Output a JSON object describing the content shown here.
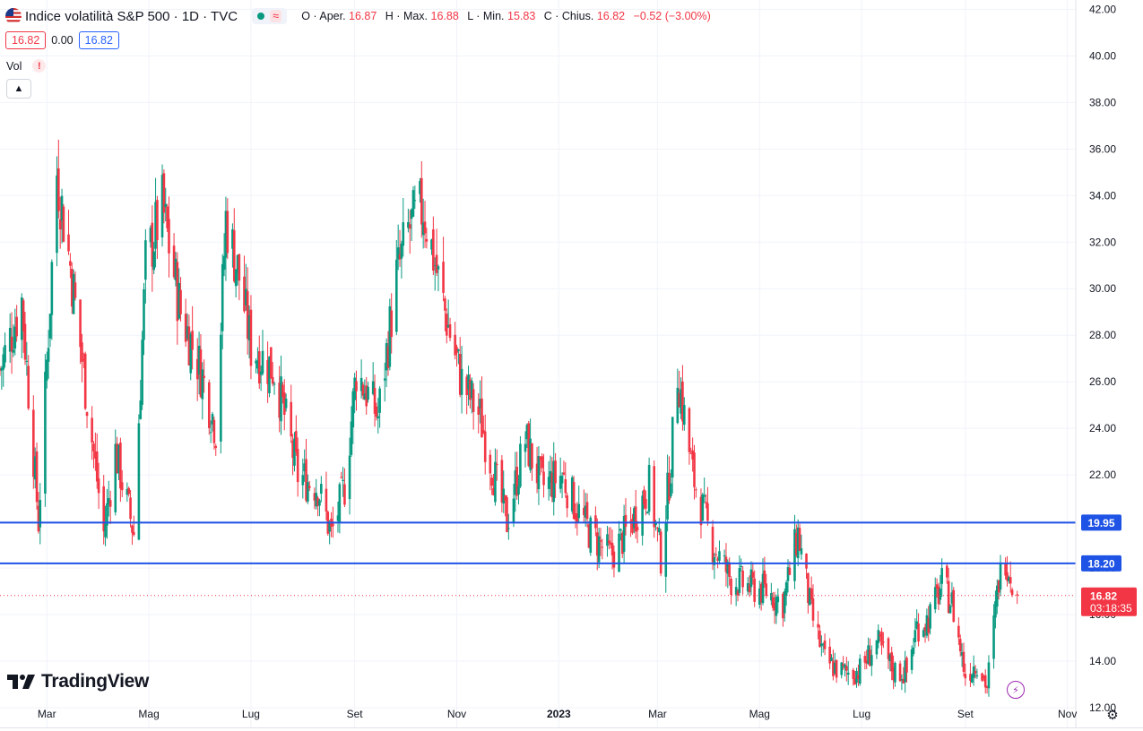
{
  "header": {
    "title": "Indice volatilità S&P 500 · 1D · TVC",
    "ohlc": [
      {
        "label": "O",
        "name": "Aper.",
        "value": "16.87"
      },
      {
        "label": "H",
        "name": "Max.",
        "value": "16.88"
      },
      {
        "label": "L",
        "name": "Min.",
        "value": "15.83"
      },
      {
        "label": "C",
        "name": "Chius.",
        "value": "16.82"
      }
    ],
    "change": "−0.52 (−3.00%)",
    "bid": "16.82",
    "spread": "0.00",
    "ask": "16.82",
    "vol_label": "Vol",
    "vol_warning": "!",
    "wave_icon": "≈"
  },
  "logo": "TradingView",
  "colors": {
    "up": "#089981",
    "down": "#f23645",
    "line": "#1e53e5",
    "grid": "#f0f3fa"
  },
  "chart_data": {
    "type": "candlestick",
    "x_range": [
      "2022-02-01",
      "2023-11-06"
    ],
    "ylim": [
      11,
      42.4
    ],
    "y_ticks": [
      "42.00",
      "40.00",
      "38.00",
      "36.00",
      "34.00",
      "32.00",
      "30.00",
      "28.00",
      "26.00",
      "24.00",
      "22.00",
      "20.00",
      "18.00",
      "16.00",
      "14.00",
      "12.00"
    ],
    "x_ticks": [
      {
        "date": "2022-03-01",
        "label": "Mar"
      },
      {
        "date": "2022-05-01",
        "label": "Mag"
      },
      {
        "date": "2022-07-01",
        "label": "Lug"
      },
      {
        "date": "2022-09-01",
        "label": "Set"
      },
      {
        "date": "2022-11-01",
        "label": "Nov"
      },
      {
        "date": "2023-01-01",
        "label": "2023"
      },
      {
        "date": "2023-03-01",
        "label": "Mar"
      },
      {
        "date": "2023-05-01",
        "label": "Mag"
      },
      {
        "date": "2023-07-01",
        "label": "Lug"
      },
      {
        "date": "2023-09-01",
        "label": "Set"
      },
      {
        "date": "2023-11-01",
        "label": "Nov"
      }
    ],
    "horizontal_lines": [
      {
        "value": 19.95,
        "label": "19.95"
      },
      {
        "value": 18.2,
        "label": "18.20"
      }
    ],
    "last_price": {
      "value": 16.82,
      "label": "16.82",
      "countdown": "03:18:35"
    },
    "close_path": [
      [
        "2022-02-01",
        26.5
      ],
      [
        "2022-02-14",
        29.5
      ],
      [
        "2022-02-24",
        20.0
      ],
      [
        "2022-03-07",
        35.0
      ],
      [
        "2022-03-15",
        31.0
      ],
      [
        "2022-04-04",
        19.5
      ],
      [
        "2022-04-11",
        23.0
      ],
      [
        "2022-04-22",
        19.5
      ],
      [
        "2022-04-29",
        31.0
      ],
      [
        "2022-05-09",
        33.5
      ],
      [
        "2022-05-20",
        29.0
      ],
      [
        "2022-06-01",
        26.5
      ],
      [
        "2022-06-10",
        24.0
      ],
      [
        "2022-06-16",
        33.0
      ],
      [
        "2022-06-24",
        30.5
      ],
      [
        "2022-07-01",
        27.5
      ],
      [
        "2022-07-15",
        26.5
      ],
      [
        "2022-07-29",
        22.0
      ],
      [
        "2022-08-10",
        21.5
      ],
      [
        "2022-08-18",
        19.4
      ],
      [
        "2022-08-26",
        21.5
      ],
      [
        "2022-09-02",
        26.5
      ],
      [
        "2022-09-15",
        24.5
      ],
      [
        "2022-09-26",
        30.5
      ],
      [
        "2022-10-03",
        32.5
      ],
      [
        "2022-10-12",
        33.5
      ],
      [
        "2022-10-25",
        29.0
      ],
      [
        "2022-11-04",
        26.0
      ],
      [
        "2022-11-15",
        24.5
      ],
      [
        "2022-11-25",
        21.5
      ],
      [
        "2022-12-01",
        20.0
      ],
      [
        "2022-12-12",
        23.5
      ],
      [
        "2022-12-22",
        21.5
      ],
      [
        "2023-01-03",
        22.0
      ],
      [
        "2023-01-12",
        20.5
      ],
      [
        "2023-01-20",
        19.5
      ],
      [
        "2023-02-01",
        18.5
      ],
      [
        "2023-02-10",
        19.5
      ],
      [
        "2023-02-24",
        21.5
      ],
      [
        "2023-03-03",
        18.5
      ],
      [
        "2023-03-09",
        22.5
      ],
      [
        "2023-03-13",
        26.5
      ],
      [
        "2023-03-22",
        22.0
      ],
      [
        "2023-04-03",
        19.0
      ],
      [
        "2023-04-14",
        17.5
      ],
      [
        "2023-04-25",
        17.2
      ],
      [
        "2023-05-05",
        17.0
      ],
      [
        "2023-05-15",
        16.5
      ],
      [
        "2023-05-24",
        19.5
      ],
      [
        "2023-06-01",
        16.0
      ],
      [
        "2023-06-09",
        14.0
      ],
      [
        "2023-06-20",
        13.5
      ],
      [
        "2023-06-30",
        13.6
      ],
      [
        "2023-07-10",
        14.8
      ],
      [
        "2023-07-20",
        13.6
      ],
      [
        "2023-07-28",
        13.5
      ],
      [
        "2023-08-03",
        15.5
      ],
      [
        "2023-08-10",
        15.8
      ],
      [
        "2023-08-18",
        17.3
      ],
      [
        "2023-08-24",
        16.5
      ],
      [
        "2023-09-01",
        13.4
      ],
      [
        "2023-09-08",
        14.0
      ],
      [
        "2023-09-14",
        12.9
      ],
      [
        "2023-09-21",
        17.5
      ],
      [
        "2023-09-25",
        18.5
      ],
      [
        "2023-09-28",
        17.8
      ],
      [
        "2023-10-02",
        16.82
      ]
    ]
  }
}
